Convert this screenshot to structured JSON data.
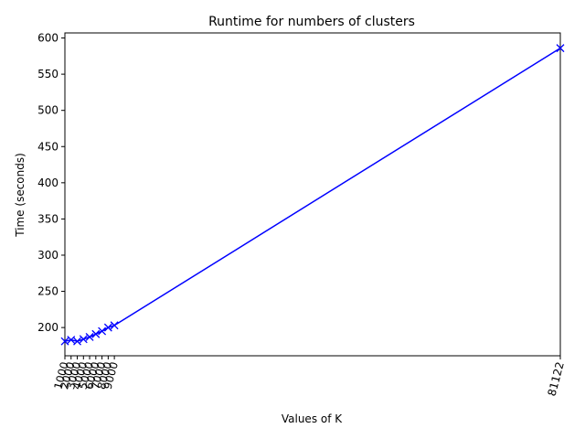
{
  "chart_data": {
    "type": "line",
    "title": "Runtime for numbers of clusters",
    "xlabel": "Values of K",
    "ylabel": "Time (seconds)",
    "x": [
      1000,
      2000,
      3000,
      4000,
      5000,
      6000,
      7000,
      8000,
      9000,
      81122
    ],
    "x_ticks": [
      1000,
      2000,
      3000,
      4000,
      5000,
      6000,
      7000,
      8000,
      9000,
      81122
    ],
    "x_tick_labels": [
      "1000",
      "2000",
      "3000",
      "4000",
      "5000",
      "6000",
      "7000",
      "8000",
      "9000",
      "81122"
    ],
    "x_tick_rotation": "rotated ~75° counter-clockwise",
    "xlim": [
      1000,
      81122
    ],
    "ylim": [
      161,
      607
    ],
    "y_ticks": [
      200,
      250,
      300,
      350,
      400,
      450,
      500,
      550,
      600
    ],
    "y_tick_labels": [
      "200",
      "250",
      "300",
      "350",
      "400",
      "450",
      "500",
      "550",
      "600"
    ],
    "series": [
      {
        "values": [
          181,
          183,
          181,
          184,
          187,
          191,
          195,
          200,
          203,
          586
        ],
        "color": "#0000ff",
        "marker": "x"
      }
    ],
    "grid": false,
    "legend": "none"
  }
}
